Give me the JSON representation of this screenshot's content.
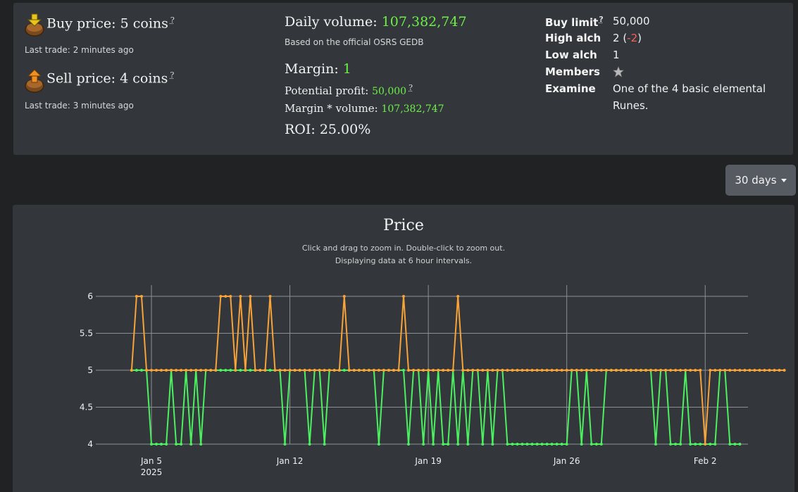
{
  "prices": {
    "buy": {
      "label": "Buy price:",
      "value": "5 coins",
      "help": "?",
      "last_trade_label": "Last trade:",
      "last_trade_value": "2 minutes ago"
    },
    "sell": {
      "label": "Sell price:",
      "value": "4 coins",
      "help": "?",
      "last_trade_label": "Last trade:",
      "last_trade_value": "3 minutes ago"
    }
  },
  "volume": {
    "daily_label": "Daily volume:",
    "daily_value": "107,382,747",
    "source_note": "Based on the official OSRS GEDB",
    "margin_label": "Margin:",
    "margin_value": "1",
    "profit_label": "Potential profit:",
    "profit_value": "50,000",
    "profit_help": "?",
    "margin_volume_label": "Margin * volume:",
    "margin_volume_value": "107,382,747",
    "roi_label": "ROI:",
    "roi_value": "25.00%"
  },
  "item_stats": {
    "buy_limit_label": "Buy limit",
    "buy_limit_help": "?",
    "buy_limit_value": "50,000",
    "high_alch_label": "High alch",
    "high_alch_value": "2",
    "high_alch_diff": "-2",
    "low_alch_label": "Low alch",
    "low_alch_value": "1",
    "members_label": "Members",
    "members_icon": "star-icon",
    "examine_label": "Examine",
    "examine_line1": "One of the 4 basic elemental",
    "examine_line2": "Runes."
  },
  "range_selector": {
    "label": "30 days"
  },
  "colors": {
    "buy_series": "#f7a338",
    "sell_series": "#4bf05f",
    "accent_green": "#6cf046",
    "negative": "#ff5d5d"
  },
  "chart_data": {
    "type": "line",
    "title": "Price",
    "subtitle_line1": "Click and drag to zoom in. Double-click to zoom out.",
    "subtitle_line2": "Displaying data at 6 hour intervals.",
    "ylim": [
      4,
      6
    ],
    "y_ticks": [
      "4",
      "4.5",
      "5",
      "5.5",
      "6"
    ],
    "x_ticks": [
      {
        "day": 5,
        "label": "Jan 5",
        "sub": "2025"
      },
      {
        "day": 12,
        "label": "Jan 12",
        "sub": ""
      },
      {
        "day": 19,
        "label": "Jan 19",
        "sub": ""
      },
      {
        "day": 26,
        "label": "Jan 26",
        "sub": ""
      },
      {
        "day": 33,
        "label": "Feb 2",
        "sub": ""
      }
    ],
    "x_start_day": 4.0,
    "x_step_days": 0.25,
    "series": [
      {
        "name": "Buy price",
        "color": "#f7a338",
        "values": [
          5,
          6,
          6,
          5,
          5,
          5,
          5,
          5,
          5,
          5,
          5,
          5,
          5,
          5,
          5,
          5,
          5,
          5,
          6,
          6,
          6,
          5,
          6,
          5,
          6,
          5,
          5,
          5,
          6,
          5,
          5,
          5,
          5,
          5,
          5,
          5,
          5,
          5,
          5,
          5,
          5,
          5,
          5,
          6,
          5,
          5,
          5,
          5,
          5,
          5,
          5,
          5,
          5,
          5,
          5,
          6,
          5,
          5,
          5,
          5,
          5,
          5,
          5,
          5,
          5,
          5,
          6,
          5,
          5,
          5,
          5,
          5,
          5,
          5,
          5,
          5,
          5,
          5,
          5,
          5,
          5,
          5,
          5,
          5,
          5,
          5,
          5,
          5,
          5,
          5,
          5,
          5,
          5,
          5,
          5,
          5,
          5,
          5,
          5,
          5,
          5,
          5,
          5,
          5,
          5,
          5,
          5,
          5,
          5,
          5,
          5,
          5,
          5,
          5,
          5,
          5,
          4,
          5,
          5,
          5,
          5,
          5,
          5,
          5,
          5,
          5,
          5,
          5,
          5,
          5,
          5,
          5,
          5
        ]
      },
      {
        "name": "Sell price",
        "color": "#4bf05f",
        "values": [
          5,
          5,
          5,
          5,
          4,
          4,
          4,
          4,
          5,
          4,
          4,
          5,
          4,
          5,
          4,
          5,
          5,
          5,
          5,
          5,
          5,
          5,
          5,
          5,
          5,
          5,
          5,
          5,
          5,
          5,
          5,
          4,
          5,
          5,
          5,
          5,
          4,
          5,
          5,
          4,
          5,
          5,
          5,
          5,
          5,
          5,
          5,
          5,
          5,
          5,
          4,
          5,
          5,
          5,
          5,
          5,
          4,
          5,
          5,
          4,
          5,
          4,
          5,
          4,
          4,
          5,
          4,
          5,
          4,
          5,
          5,
          4,
          5,
          4,
          5,
          5,
          4,
          4,
          4,
          4,
          4,
          4,
          4,
          4,
          4,
          4,
          4,
          4,
          4,
          5,
          5,
          4,
          5,
          4,
          4,
          4,
          5,
          5,
          5,
          5,
          5,
          5,
          5,
          5,
          5,
          5,
          4,
          5,
          5,
          4,
          4,
          4,
          5,
          4,
          4,
          4,
          4,
          4,
          4,
          5,
          5,
          4,
          4,
          4
        ]
      }
    ]
  }
}
